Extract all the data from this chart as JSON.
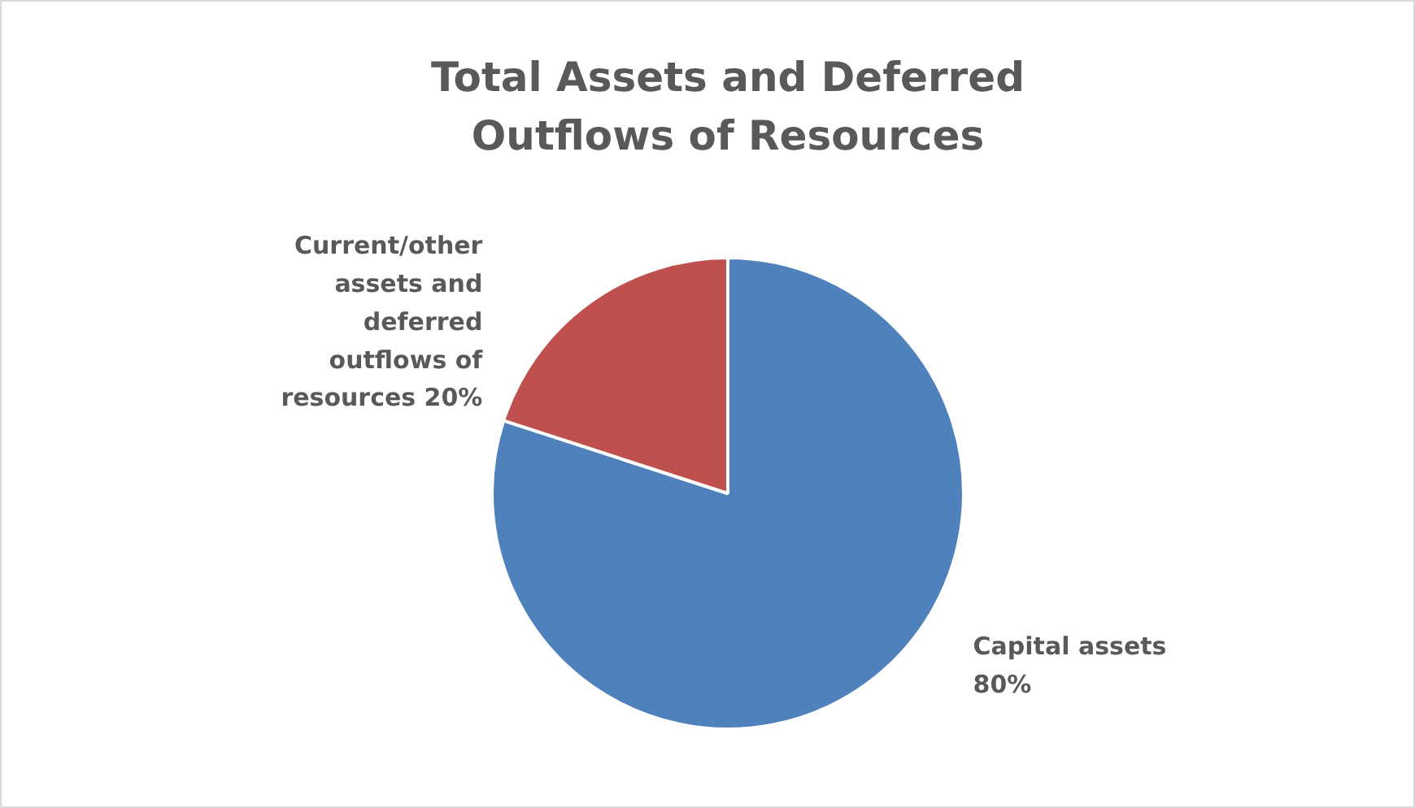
{
  "chart_data": {
    "type": "pie",
    "title": "Total Assets and Deferred Outflows of Resources",
    "categories": [
      "Capital assets",
      "Current/other assets and deferred outflows of resources"
    ],
    "values": [
      80,
      20
    ],
    "colors": [
      "#4f81bd",
      "#c0504d"
    ],
    "value_labels": [
      "80%",
      "20%"
    ]
  }
}
